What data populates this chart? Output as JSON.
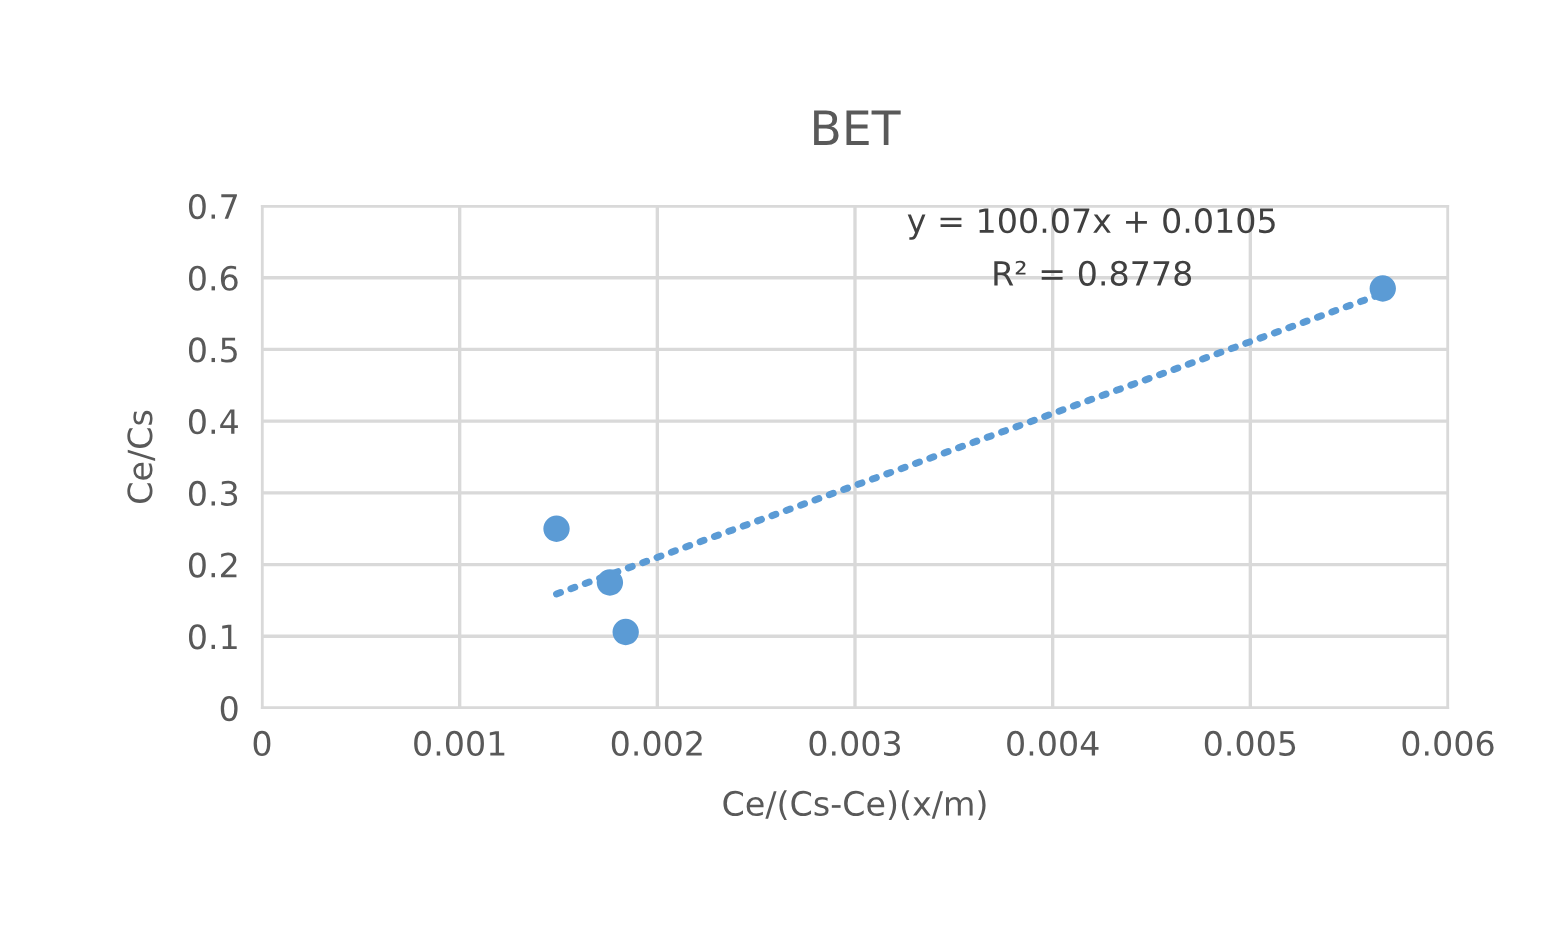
{
  "chart_data": {
    "type": "scatter",
    "title": "BET",
    "xlabel": "Ce/(Cs-Ce)(x/m)",
    "ylabel": "Ce/Cs",
    "series": [
      {
        "color": "#5b9bd5",
        "x": [
          0.00149,
          0.00176,
          0.00184,
          0.00567
        ],
        "values": [
          0.25,
          0.175,
          0.106,
          0.585
        ],
        "marker": "circle"
      },
      {
        "type": "line",
        "color": "#5b9bd5",
        "x": [
          0.00149,
          0.00567
        ],
        "values": [
          0.159,
          0.578
        ],
        "line_style": "dotted",
        "marker": "none"
      }
    ],
    "annotations": [
      "y = 100.07x + 0.0105",
      "R² = 0.8778"
    ],
    "xlim": [
      0,
      0.006
    ],
    "xticks": [
      0,
      0.001,
      0.002,
      0.003,
      0.004,
      0.005,
      0.006
    ],
    "ylim": [
      0,
      0.7
    ],
    "yticks": [
      0,
      0.1,
      0.2,
      0.3,
      0.4,
      0.5,
      0.6,
      0.7
    ],
    "grid": true,
    "legend": false
  }
}
